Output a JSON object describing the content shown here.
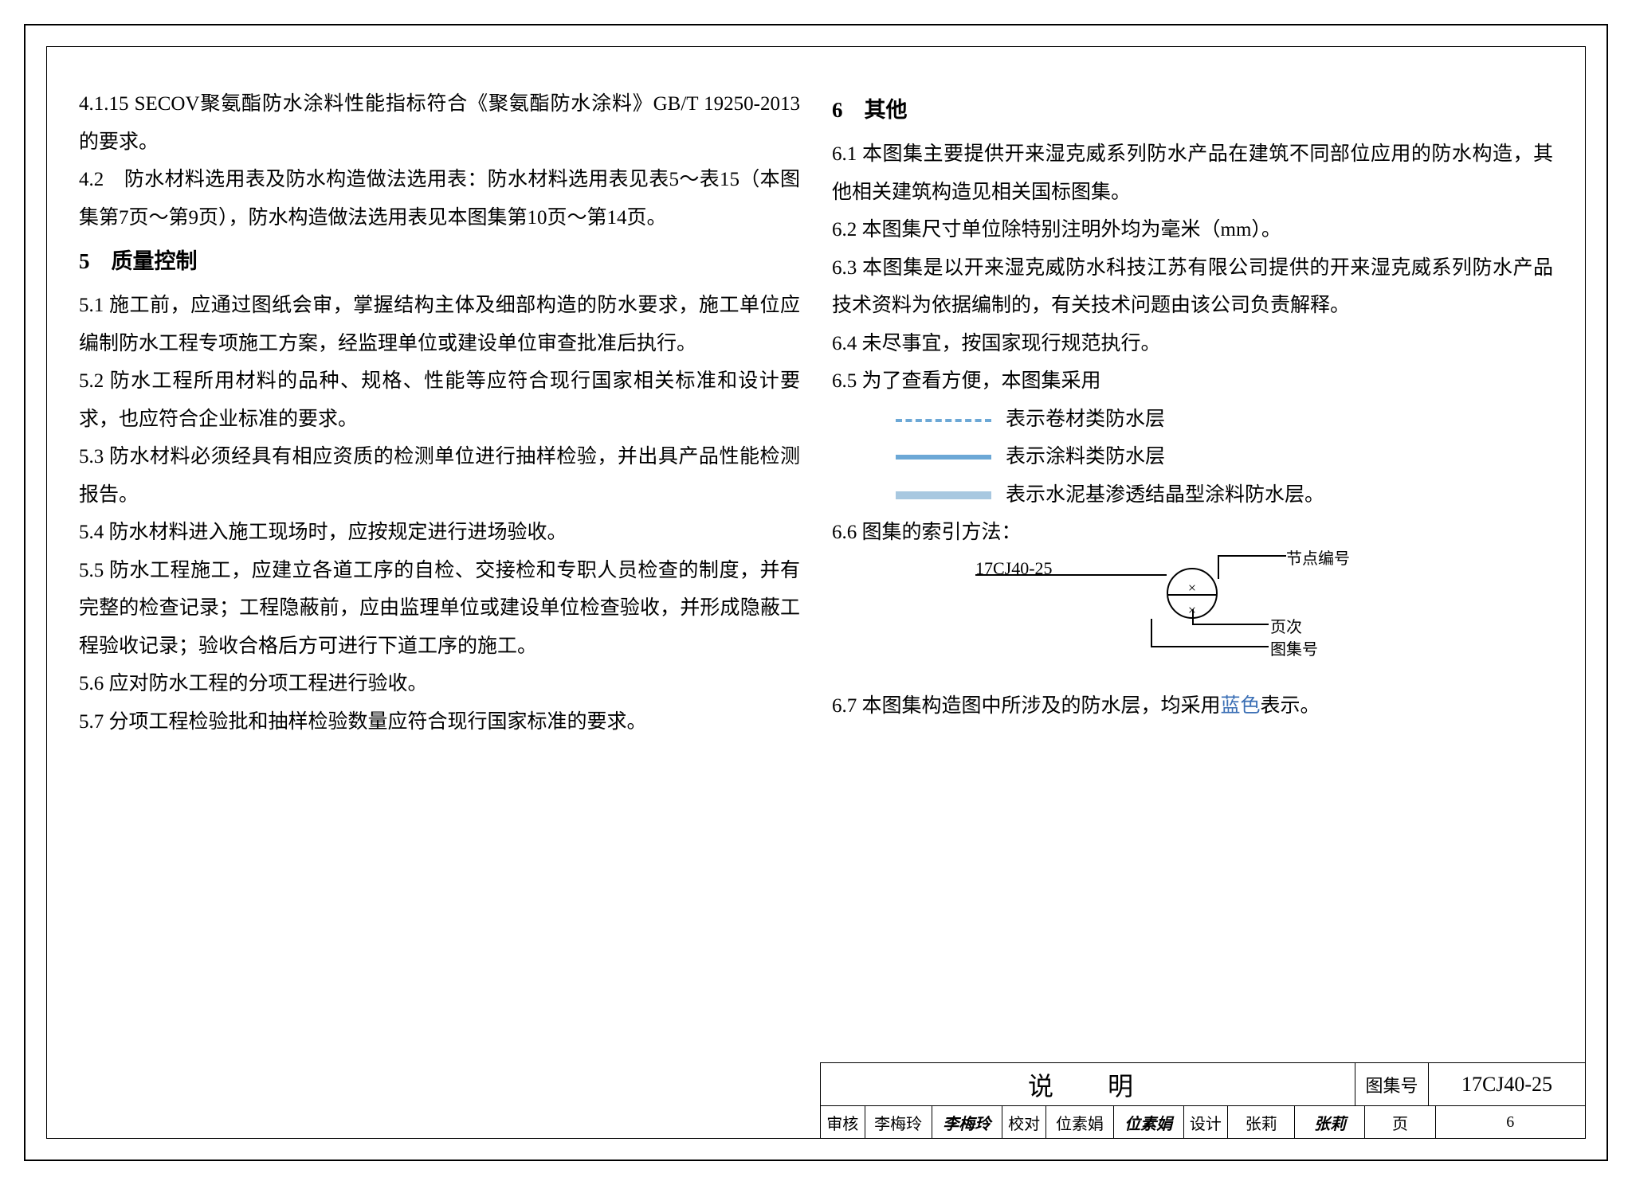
{
  "left": {
    "p4_1_15": "4.1.15 SECOV聚氨酯防水涂料性能指标符合《聚氨酯防水涂料》GB/T 19250-2013的要求。",
    "p4_2": "4.2　防水材料选用表及防水构造做法选用表：防水材料选用表见表5～表15（本图集第7页～第9页），防水构造做法选用表见本图集第10页～第14页。",
    "h5": "5　质量控制",
    "p5_1": "5.1 施工前，应通过图纸会审，掌握结构主体及细部构造的防水要求，施工单位应编制防水工程专项施工方案，经监理单位或建设单位审查批准后执行。",
    "p5_2": "5.2 防水工程所用材料的品种、规格、性能等应符合现行国家相关标准和设计要求，也应符合企业标准的要求。",
    "p5_3": "5.3 防水材料必须经具有相应资质的检测单位进行抽样检验，并出具产品性能检测报告。",
    "p5_4": "5.4 防水材料进入施工现场时，应按规定进行进场验收。",
    "p5_5": "5.5 防水工程施工，应建立各道工序的自检、交接检和专职人员检查的制度，并有完整的检查记录；工程隐蔽前，应由监理单位或建设单位检查验收，并形成隐蔽工程验收记录；验收合格后方可进行下道工序的施工。",
    "p5_6": "5.6 应对防水工程的分项工程进行验收。",
    "p5_7": "5.7 分项工程检验批和抽样检验数量应符合现行国家标准的要求。"
  },
  "right": {
    "h6": "6　其他",
    "p6_1": "6.1 本图集主要提供开来湿克威系列防水产品在建筑不同部位应用的防水构造，其他相关建筑构造见相关国标图集。",
    "p6_2": "6.2 本图集尺寸单位除特别注明外均为毫米（mm）。",
    "p6_3": "6.3 本图集是以开来湿克威防水科技江苏有限公司提供的开来湿克威系列防水产品技术资料为依据编制的，有关技术问题由该公司负责解释。",
    "p6_4": "6.4 未尽事宜，按国家现行规范执行。",
    "p6_5": "6.5 为了查看方便，本图集采用",
    "legend1": "表示卷材类防水层",
    "legend2": "表示涂料类防水层",
    "legend3": "表示水泥基渗透结晶型涂料防水层。",
    "p6_6": "6.6 图集的索引方法：",
    "index_code": "17CJ40-25",
    "lbl_node": "节点编号",
    "lbl_page_idx": "页次",
    "lbl_atlas": "图集号",
    "p6_7a": "6.7 本图集构造图中所涉及的防水层，均采用",
    "p6_7_blue": "蓝色",
    "p6_7b": "表示。"
  },
  "legend_colors": {
    "membrane": "#6ca8d6",
    "coating_border": "#6ca8d6",
    "crystalline_fill": "#a8c8e0"
  },
  "titleblock": {
    "title": "说　明",
    "atlas_label": "图集号",
    "atlas_num": "17CJ40-25",
    "row2": {
      "review_lab": "审核",
      "review_name": "李梅玲",
      "review_sig": "李梅玲",
      "check_lab": "校对",
      "check_name": "位素娟",
      "check_sig": "位素娟",
      "design_lab": "设计",
      "design_name": "张莉",
      "design_sig": "张莉",
      "page_lab": "页",
      "page_num": "6"
    }
  }
}
